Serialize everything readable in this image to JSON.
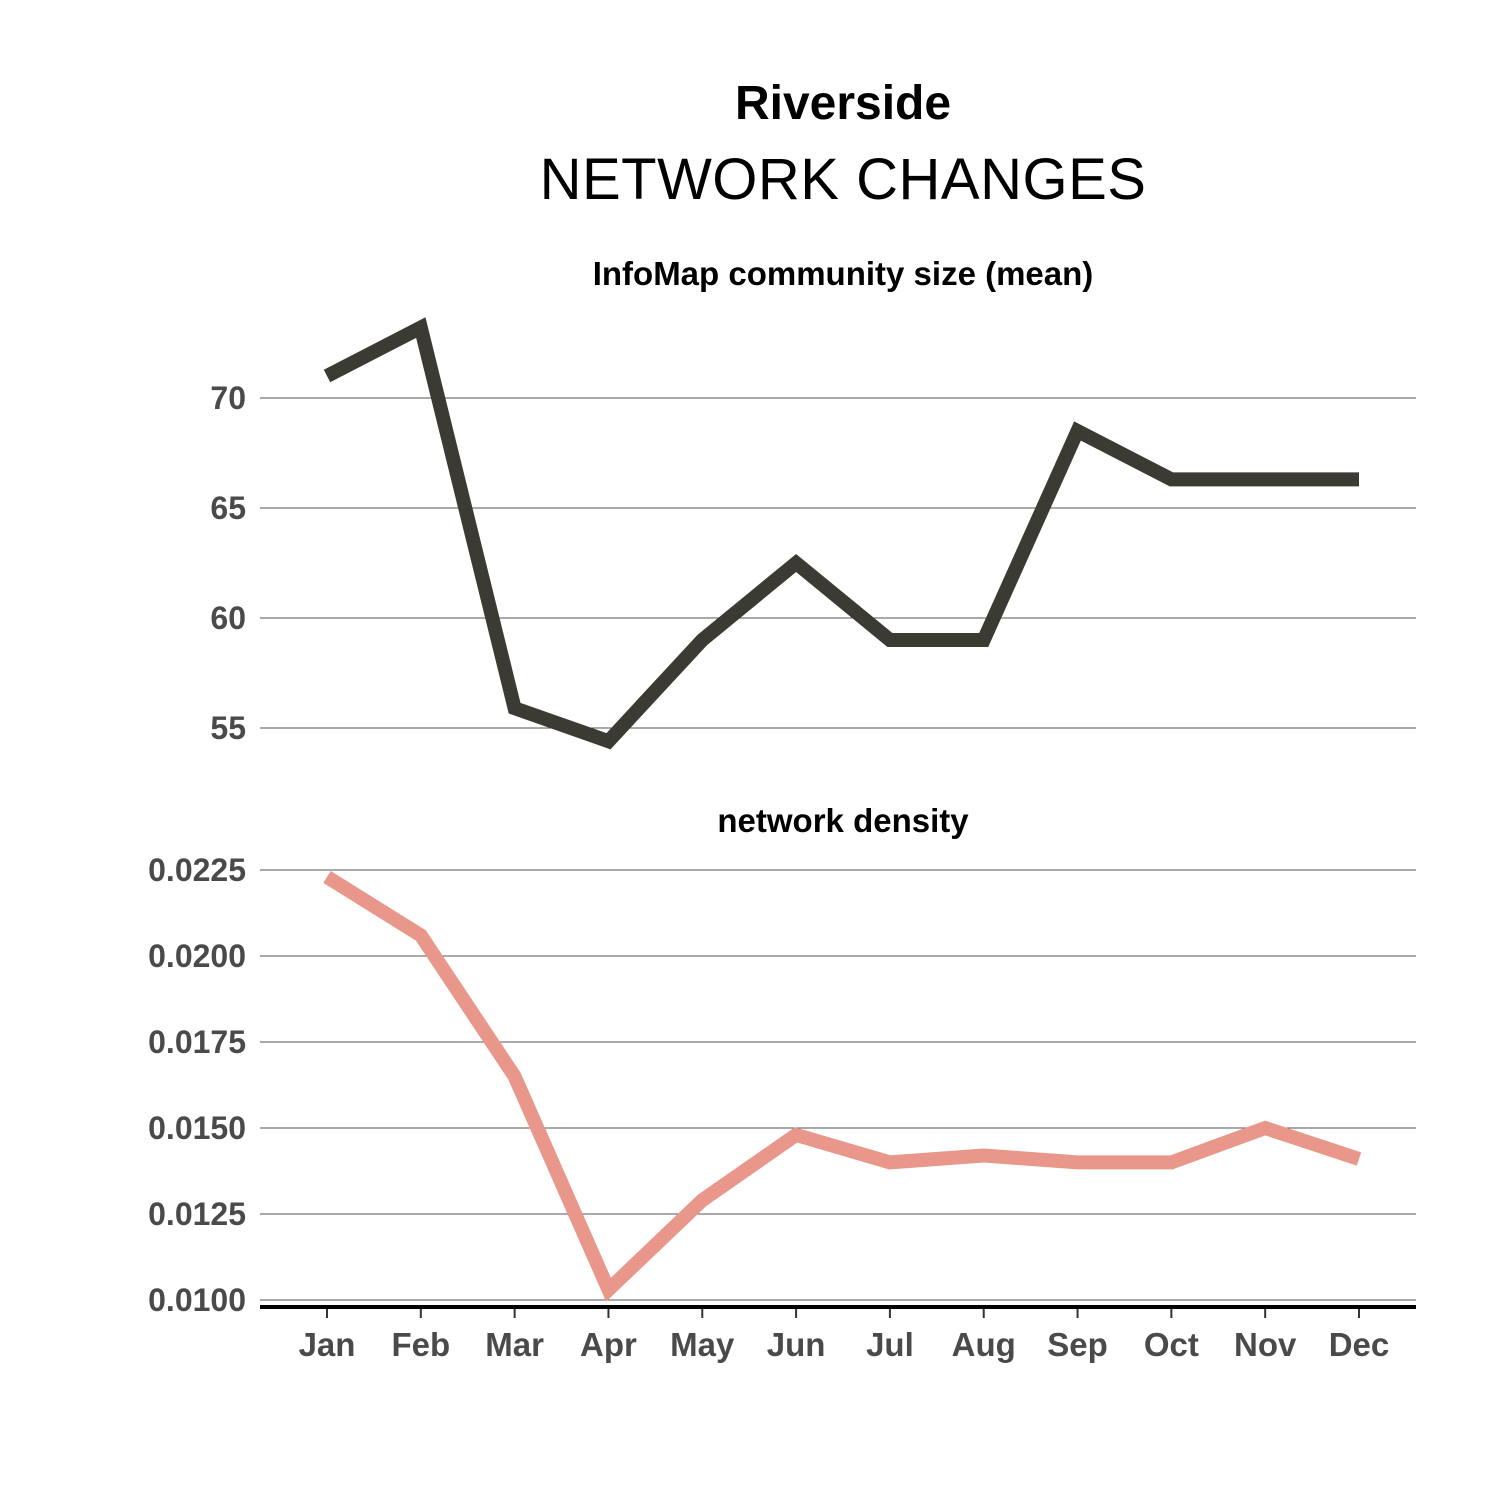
{
  "title": "Riverside",
  "subtitle": "NETWORK CHANGES",
  "colors": {
    "series_1": "#3b3a33",
    "series_2": "#e8978a"
  },
  "chart_data": [
    {
      "type": "line",
      "title": "InfoMap community size (mean)",
      "categories": [
        "Jan",
        "Feb",
        "Mar",
        "Apr",
        "May",
        "Jun",
        "Jul",
        "Aug",
        "Sep",
        "Oct",
        "Nov",
        "Dec"
      ],
      "series": [
        {
          "values": [
            71.0,
            73.2,
            55.9,
            54.4,
            59.0,
            62.5,
            59.0,
            59.0,
            68.5,
            66.3,
            66.3,
            66.3
          ]
        }
      ],
      "yticks": [
        "55",
        "60",
        "65",
        "70"
      ],
      "ytick_values": [
        55,
        60,
        65,
        70
      ],
      "ylim": [
        54.4,
        73.2
      ],
      "grid": "horizontal",
      "legend": "none"
    },
    {
      "type": "line",
      "title": "network density",
      "categories": [
        "Jan",
        "Feb",
        "Mar",
        "Apr",
        "May",
        "Jun",
        "Jul",
        "Aug",
        "Sep",
        "Oct",
        "Nov",
        "Dec"
      ],
      "series": [
        {
          "values": [
            0.0223,
            0.0206,
            0.0165,
            0.0103,
            0.0129,
            0.0148,
            0.014,
            0.0142,
            0.014,
            0.014,
            0.015,
            0.0141
          ]
        }
      ],
      "yticks": [
        "0.0100",
        "0.0125",
        "0.0150",
        "0.0175",
        "0.0200",
        "0.0225"
      ],
      "ytick_values": [
        0.01,
        0.0125,
        0.015,
        0.0175,
        0.02,
        0.0225
      ],
      "ylim": [
        0.01,
        0.0225
      ],
      "grid": "horizontal",
      "legend": "none"
    }
  ]
}
